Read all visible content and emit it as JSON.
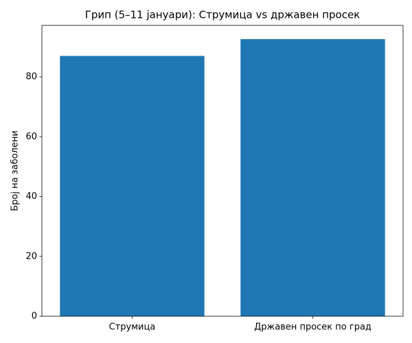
{
  "chart_data": {
    "type": "bar",
    "title": "Грип (5–11 јануари): Струмица vs државен просек",
    "y_label": "Број на заболени",
    "categories": [
      "Струмица",
      "Државен просек по град"
    ],
    "values": [
      87,
      92.6
    ],
    "color": "#1f77b4",
    "ylim": [
      0,
      97.2
    ],
    "yticks": [
      0,
      20,
      40,
      60,
      80
    ],
    "grid": false
  }
}
